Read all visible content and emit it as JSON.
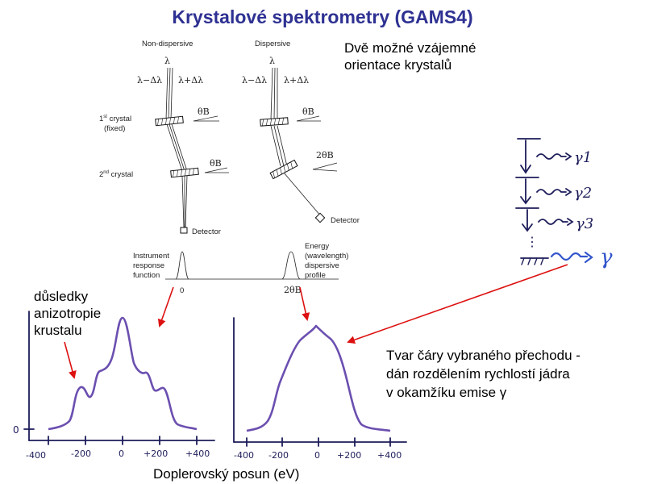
{
  "title": "Krystalové spektrometry (GAMS4)",
  "orientation_note": [
    "Dvě možné vzájemné",
    "orientace krystalů"
  ],
  "anisotropy_note": [
    "důsledky",
    "anizotropie",
    "krustalu"
  ],
  "lineshape_note": [
    "Tvar čáry vybraného přechodu -",
    "dán rozdělením rychlostí jádra",
    "v okamžíku emise γ"
  ],
  "x_axis_title": "Doplerovský posun (eV)",
  "diagram": {
    "non_dispersive": "Non-dispersive",
    "dispersive": "Dispersive",
    "lambda": "λ",
    "lambda_minus": "λ−Δλ",
    "lambda_plus": "λ+Δλ",
    "first_crystal": "1st crystal",
    "first_crystal_sup": "st",
    "fixed": "(fixed)",
    "second_crystal": "2nd crystal",
    "second_crystal_sup": "nd",
    "theta_b": "θB",
    "two_theta_b": "2θB",
    "detector": "Detector",
    "instrument_response": [
      "Instrument",
      "response",
      "function"
    ],
    "energy_profile": [
      "Energy",
      "(wavelength)",
      "dispersive",
      "profile"
    ],
    "zero": "0",
    "two_theta_axis": "2θB"
  },
  "cascade": {
    "labels": [
      "γ1",
      "γ2",
      "γ3",
      "γ"
    ],
    "dots": "⋮"
  },
  "plot_left": {
    "ticks": [
      "-400",
      "-200",
      "0",
      "+200",
      "+400"
    ],
    "zero_label": "0"
  },
  "plot_right": {
    "ticks": [
      "-400",
      "-200",
      "0",
      "+200",
      "+400"
    ]
  },
  "colors": {
    "title": "#2e3192",
    "curve": "#6b4fb0",
    "arrow": "#dd1111",
    "handwriting": "#1c1c5a"
  }
}
